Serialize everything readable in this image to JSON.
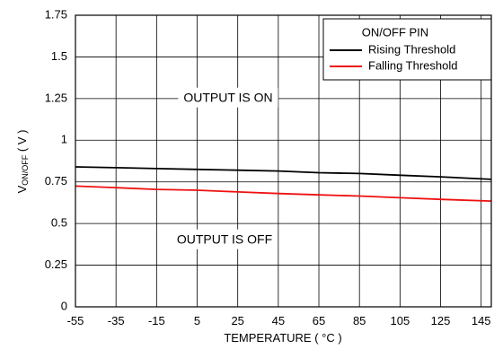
{
  "chart_data": {
    "type": "line",
    "xlabel": "TEMPERATURE ( °C )",
    "ylabel_main": "V",
    "ylabel_sub": "ON/OFF",
    "ylabel_tail": " ( V )",
    "x_ticks": [
      "-55",
      "-35",
      "-15",
      "5",
      "25",
      "45",
      "65",
      "85",
      "105",
      "125",
      "145"
    ],
    "y_ticks": [
      "0",
      "0.25",
      "0.5",
      "0.75",
      "1",
      "1.25",
      "1.5",
      "1.75"
    ],
    "xlim": [
      -55,
      150
    ],
    "ylim": [
      0,
      1.75
    ],
    "grid": true,
    "legend": {
      "title": "ON/OFF PIN",
      "placement": "top-right"
    },
    "annotations": {
      "on": "OUTPUT IS ON",
      "off": "OUTPUT IS OFF"
    },
    "series": [
      {
        "name": "Rising Threshold",
        "color": "#000000",
        "x": [
          -55,
          -35,
          -15,
          5,
          25,
          45,
          65,
          85,
          105,
          125,
          150
        ],
        "y": [
          0.84,
          0.835,
          0.83,
          0.825,
          0.82,
          0.815,
          0.805,
          0.8,
          0.79,
          0.78,
          0.765
        ]
      },
      {
        "name": "Falling Threshold",
        "color": "#ee1111",
        "x": [
          -55,
          -35,
          -15,
          5,
          25,
          45,
          65,
          85,
          105,
          125,
          150
        ],
        "y": [
          0.725,
          0.715,
          0.705,
          0.7,
          0.69,
          0.68,
          0.672,
          0.665,
          0.655,
          0.645,
          0.635
        ]
      }
    ]
  }
}
